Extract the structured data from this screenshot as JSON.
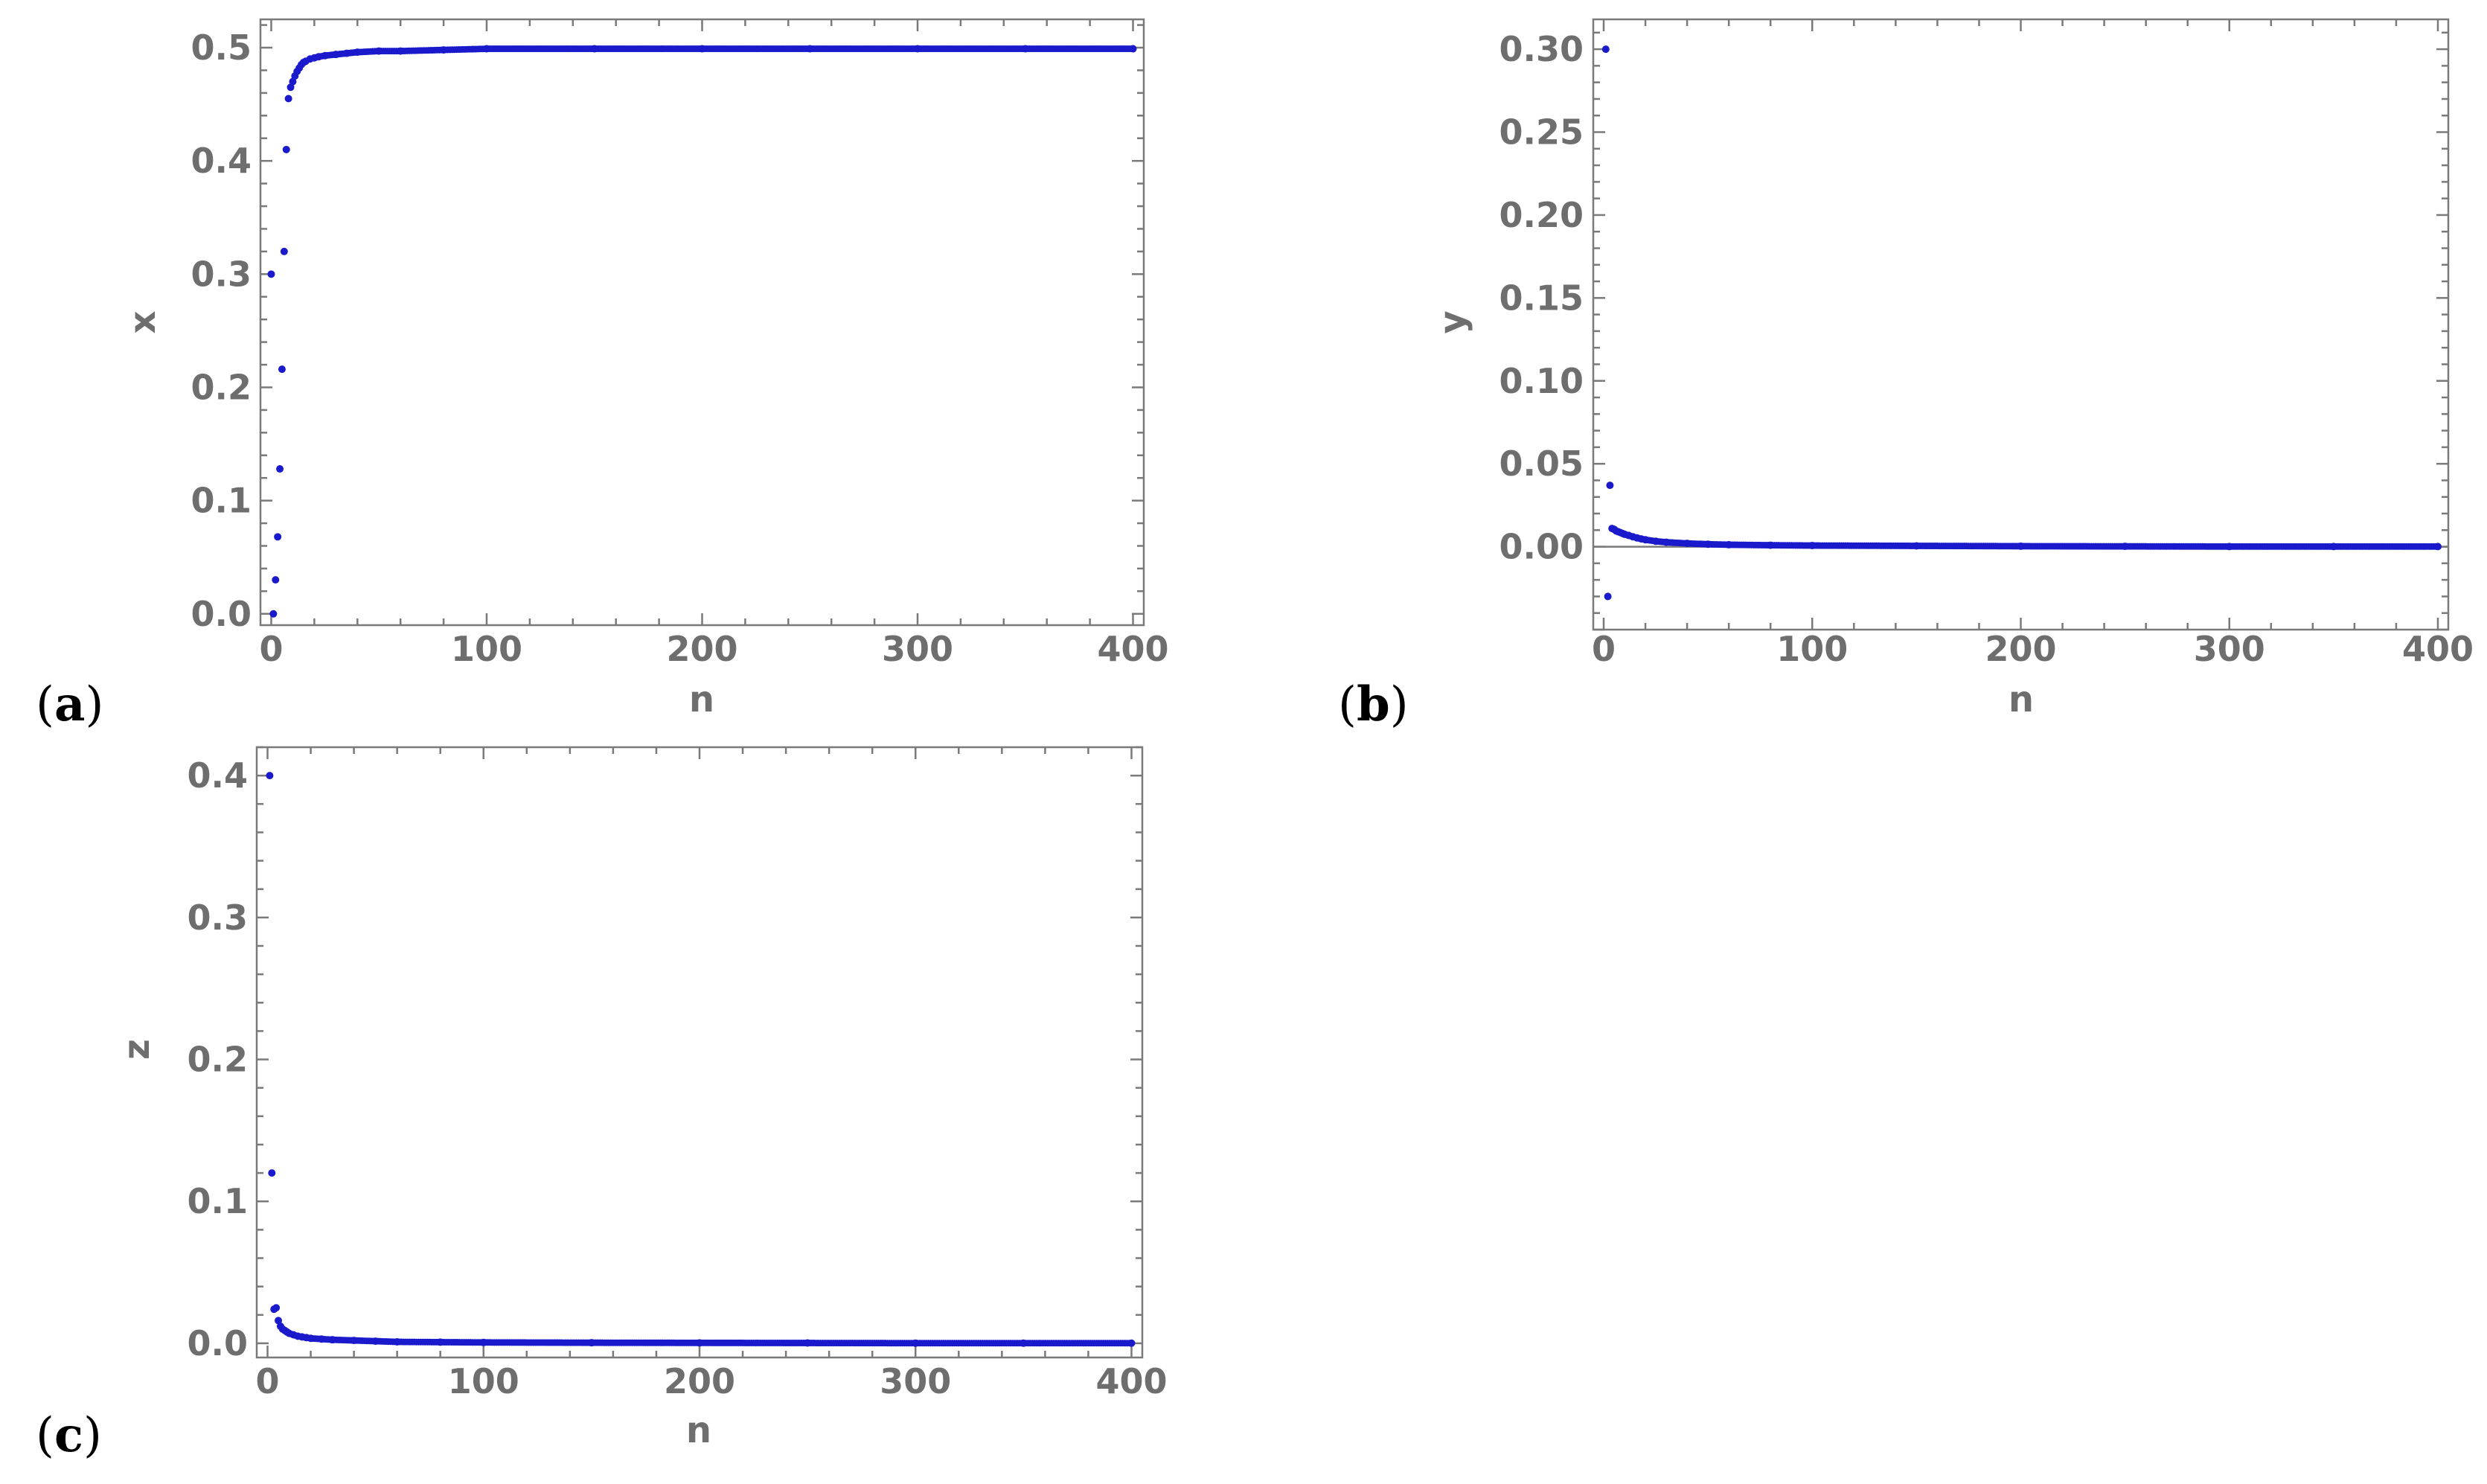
{
  "colors": {
    "points": "#1a1acc",
    "frame": "#7a7a7a",
    "text": "#6e6e6e"
  },
  "panels": [
    {
      "label_open": "(",
      "label_letter": "a",
      "label_close": ")"
    },
    {
      "label_open": "(",
      "label_letter": "b",
      "label_close": ")"
    },
    {
      "label_open": "(",
      "label_letter": "c",
      "label_close": ")"
    }
  ],
  "chart_data": [
    {
      "type": "scatter",
      "title": "",
      "xlabel": "n",
      "ylabel": "x",
      "xlim": [
        -5,
        405
      ],
      "ylim": [
        -0.01,
        0.525
      ],
      "xticks": [
        0,
        100,
        200,
        300,
        400
      ],
      "xtick_labels": [
        "0",
        "100",
        "200",
        "300",
        "400"
      ],
      "yticks": [
        0.0,
        0.1,
        0.2,
        0.3,
        0.4,
        0.5
      ],
      "ytick_labels": [
        "0.0",
        "0.1",
        "0.2",
        "0.3",
        "0.4",
        "0.5"
      ],
      "grid": false,
      "zero_line": false,
      "x": [
        0,
        1,
        2,
        3,
        4,
        5,
        6,
        7,
        8,
        9,
        10,
        11,
        12,
        13,
        14,
        15,
        16,
        18,
        20,
        22,
        25,
        30,
        35,
        40,
        50,
        60,
        80,
        100,
        150,
        200,
        250,
        300,
        350,
        400
      ],
      "y": [
        0.3,
        0.0,
        0.03,
        0.068,
        0.128,
        0.216,
        0.32,
        0.41,
        0.455,
        0.465,
        0.47,
        0.475,
        0.479,
        0.482,
        0.485,
        0.487,
        0.488,
        0.49,
        0.491,
        0.492,
        0.493,
        0.494,
        0.495,
        0.496,
        0.497,
        0.497,
        0.498,
        0.499,
        0.499,
        0.499,
        0.499,
        0.499,
        0.499,
        0.499
      ],
      "dense_tail": {
        "from": 20,
        "to": 400,
        "approach": 0.5
      }
    },
    {
      "type": "scatter",
      "title": "",
      "xlabel": "n",
      "ylabel": "y",
      "xlim": [
        -5,
        405
      ],
      "ylim": [
        -0.05,
        0.318
      ],
      "xticks": [
        0,
        100,
        200,
        300,
        400
      ],
      "xtick_labels": [
        "0",
        "100",
        "200",
        "300",
        "400"
      ],
      "yticks": [
        0.0,
        0.05,
        0.1,
        0.15,
        0.2,
        0.25,
        0.3
      ],
      "ytick_labels": [
        "0.00",
        "0.05",
        "0.10",
        "0.15",
        "0.20",
        "0.25",
        "0.30"
      ],
      "grid": false,
      "zero_line": true,
      "x": [
        1,
        2,
        3,
        4,
        5,
        6,
        7,
        8,
        9,
        10,
        12,
        14,
        16,
        18,
        20,
        25,
        30,
        40,
        50,
        60,
        80,
        100,
        150,
        200,
        250,
        300,
        350,
        400
      ],
      "y": [
        0.3,
        -0.03,
        0.037,
        0.011,
        0.0105,
        0.0095,
        0.009,
        0.0085,
        0.008,
        0.0075,
        0.0068,
        0.006,
        0.0053,
        0.0047,
        0.0042,
        0.0033,
        0.0027,
        0.002,
        0.0015,
        0.0012,
        0.0009,
        0.0007,
        0.0005,
        0.0003,
        0.0002,
        0.0001,
        0.0001,
        0.0001
      ],
      "dense_tail": {
        "from": 5,
        "to": 400,
        "approach": 0.0
      }
    },
    {
      "type": "scatter",
      "title": "",
      "xlabel": "n",
      "ylabel": "z",
      "xlim": [
        -5,
        405
      ],
      "ylim": [
        -0.01,
        0.42
      ],
      "xticks": [
        0,
        100,
        200,
        300,
        400
      ],
      "xtick_labels": [
        "0",
        "100",
        "200",
        "300",
        "400"
      ],
      "yticks": [
        0.0,
        0.1,
        0.2,
        0.3,
        0.4
      ],
      "ytick_labels": [
        "0.0",
        "0.1",
        "0.2",
        "0.3",
        "0.4"
      ],
      "grid": false,
      "zero_line": false,
      "x": [
        1,
        2,
        3,
        4,
        5,
        6,
        7,
        8,
        9,
        10,
        12,
        14,
        16,
        18,
        20,
        25,
        30,
        40,
        50,
        60,
        80,
        100,
        150,
        200,
        250,
        300,
        350,
        400
      ],
      "y": [
        0.4,
        0.12,
        0.024,
        0.025,
        0.016,
        0.012,
        0.01,
        0.009,
        0.008,
        0.007,
        0.006,
        0.005,
        0.0045,
        0.004,
        0.0035,
        0.003,
        0.0025,
        0.002,
        0.0015,
        0.001,
        0.0008,
        0.0006,
        0.0004,
        0.0003,
        0.0002,
        0.0001,
        0.0001,
        0.0001
      ],
      "dense_tail": {
        "from": 8,
        "to": 400,
        "approach": 0.0
      }
    }
  ]
}
